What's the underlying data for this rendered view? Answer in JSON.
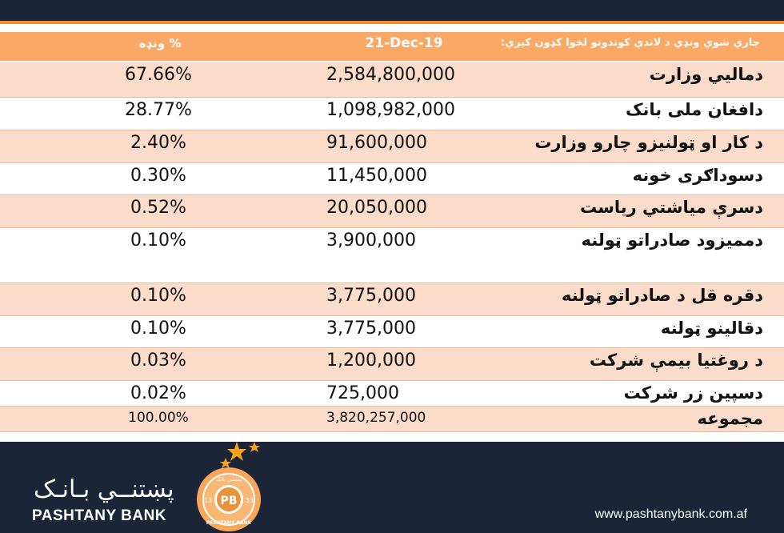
{
  "header": {
    "pct_label": "ونډه %",
    "date_label": "21-Dec-19",
    "desc_label": "جاري شوي ونډي د لاندي کوندونو لخوا کډون کيري:"
  },
  "rows": [
    {
      "label": "دماليي وزارت",
      "amount": "2,584,800,000",
      "pct": "67.66%"
    },
    {
      "label": "دافغان ملی بانک",
      "amount": "1,098,982,000",
      "pct": "28.77%"
    },
    {
      "label": "د کار او ټولنيزو چارو وزارت",
      "amount": "91,600,000",
      "pct": "2.40%"
    },
    {
      "label": "دسوداګری خونه",
      "amount": "11,450,000",
      "pct": "0.30%"
    },
    {
      "label": "دسرې مياشتي رياست",
      "amount": "20,050,000",
      "pct": "0.52%"
    },
    {
      "label": "دمميزود صادراتو ټولنه",
      "amount": "3,900,000",
      "pct": "0.10%"
    },
    {
      "label": "دقره قل د صادراتو ټولنه",
      "amount": "3,775,000",
      "pct": "0.10%"
    },
    {
      "label": "دقالينو ټولنه",
      "amount": "3,775,000",
      "pct": "0.10%"
    },
    {
      "label": "د روغتيا بيمې شرکت",
      "amount": "1,200,000",
      "pct": "0.03%"
    },
    {
      "label": "دسپين زر شرکت",
      "amount": "725,000",
      "pct": "0.02%"
    }
  ],
  "total": {
    "label": "مجموعه",
    "amount": "3,820,257,000",
    "pct": "100.00%"
  },
  "footer": {
    "brand_ar": "پښتنــي بـانـک",
    "brand_en": "PASHTANY BANK",
    "badge_initials": "PB",
    "badge_left": "13",
    "badge_right": "33",
    "badge_top": "پښتني بانک",
    "badge_bottom": "PASHTANY BANK",
    "url": "www.pashtanybank.com.af"
  },
  "colors": {
    "navy": "#1a2638",
    "orange": "#f58a2b",
    "header_orange": "#f9a866",
    "shade": "#fbdccb"
  }
}
